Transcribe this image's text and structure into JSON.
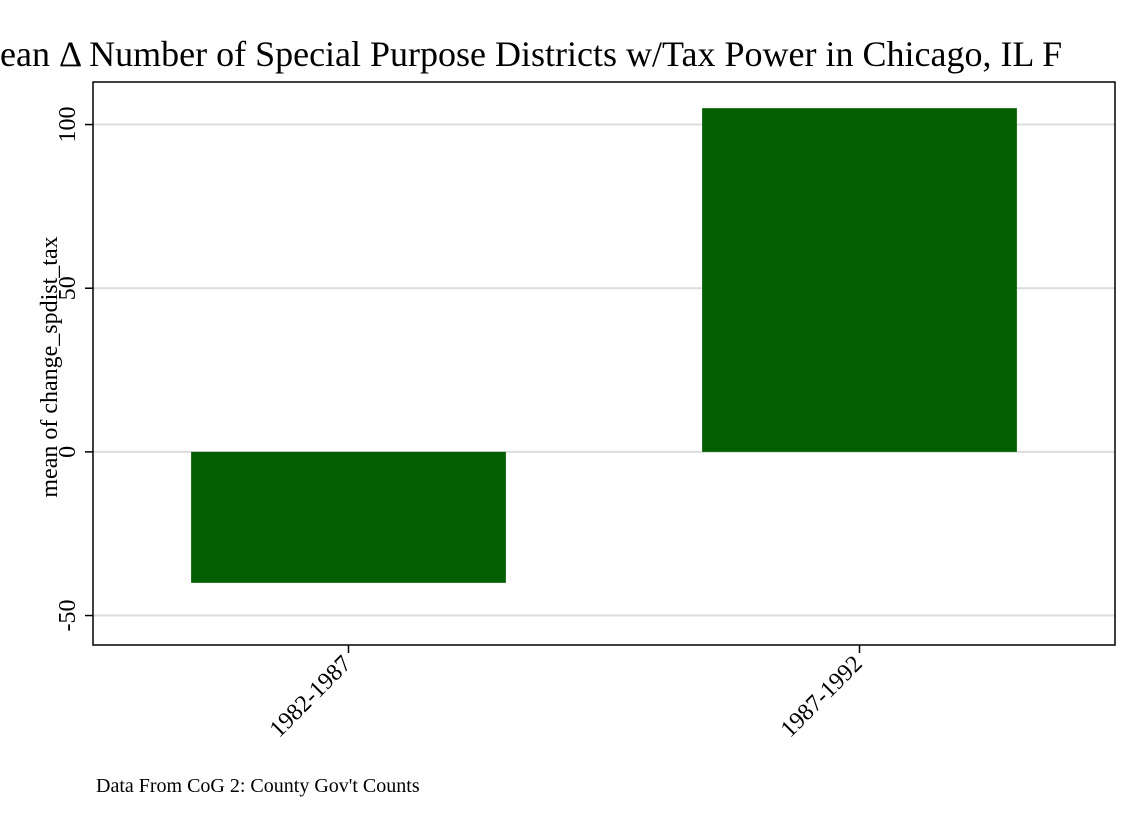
{
  "chart_data": {
    "type": "bar",
    "title": "ean Δ Number of Special Purpose Districts w/Tax Power in Chicago, IL F",
    "xlabel": "",
    "ylabel": "mean of change_spdist_tax",
    "categories": [
      "1982-1987",
      "1987-1992"
    ],
    "values": [
      -40,
      105
    ],
    "ylim": [
      -59,
      113
    ],
    "yticks": [
      -50,
      0,
      50,
      100
    ],
    "ytick_labels": [
      "-50",
      "0",
      "50",
      "100"
    ],
    "grid": true,
    "legend": "none",
    "note": "Data From CoG 2: County Gov't Counts"
  },
  "colors": {
    "bar": "#035e00",
    "grid": "#dcdcdc",
    "axis": "#000000"
  }
}
